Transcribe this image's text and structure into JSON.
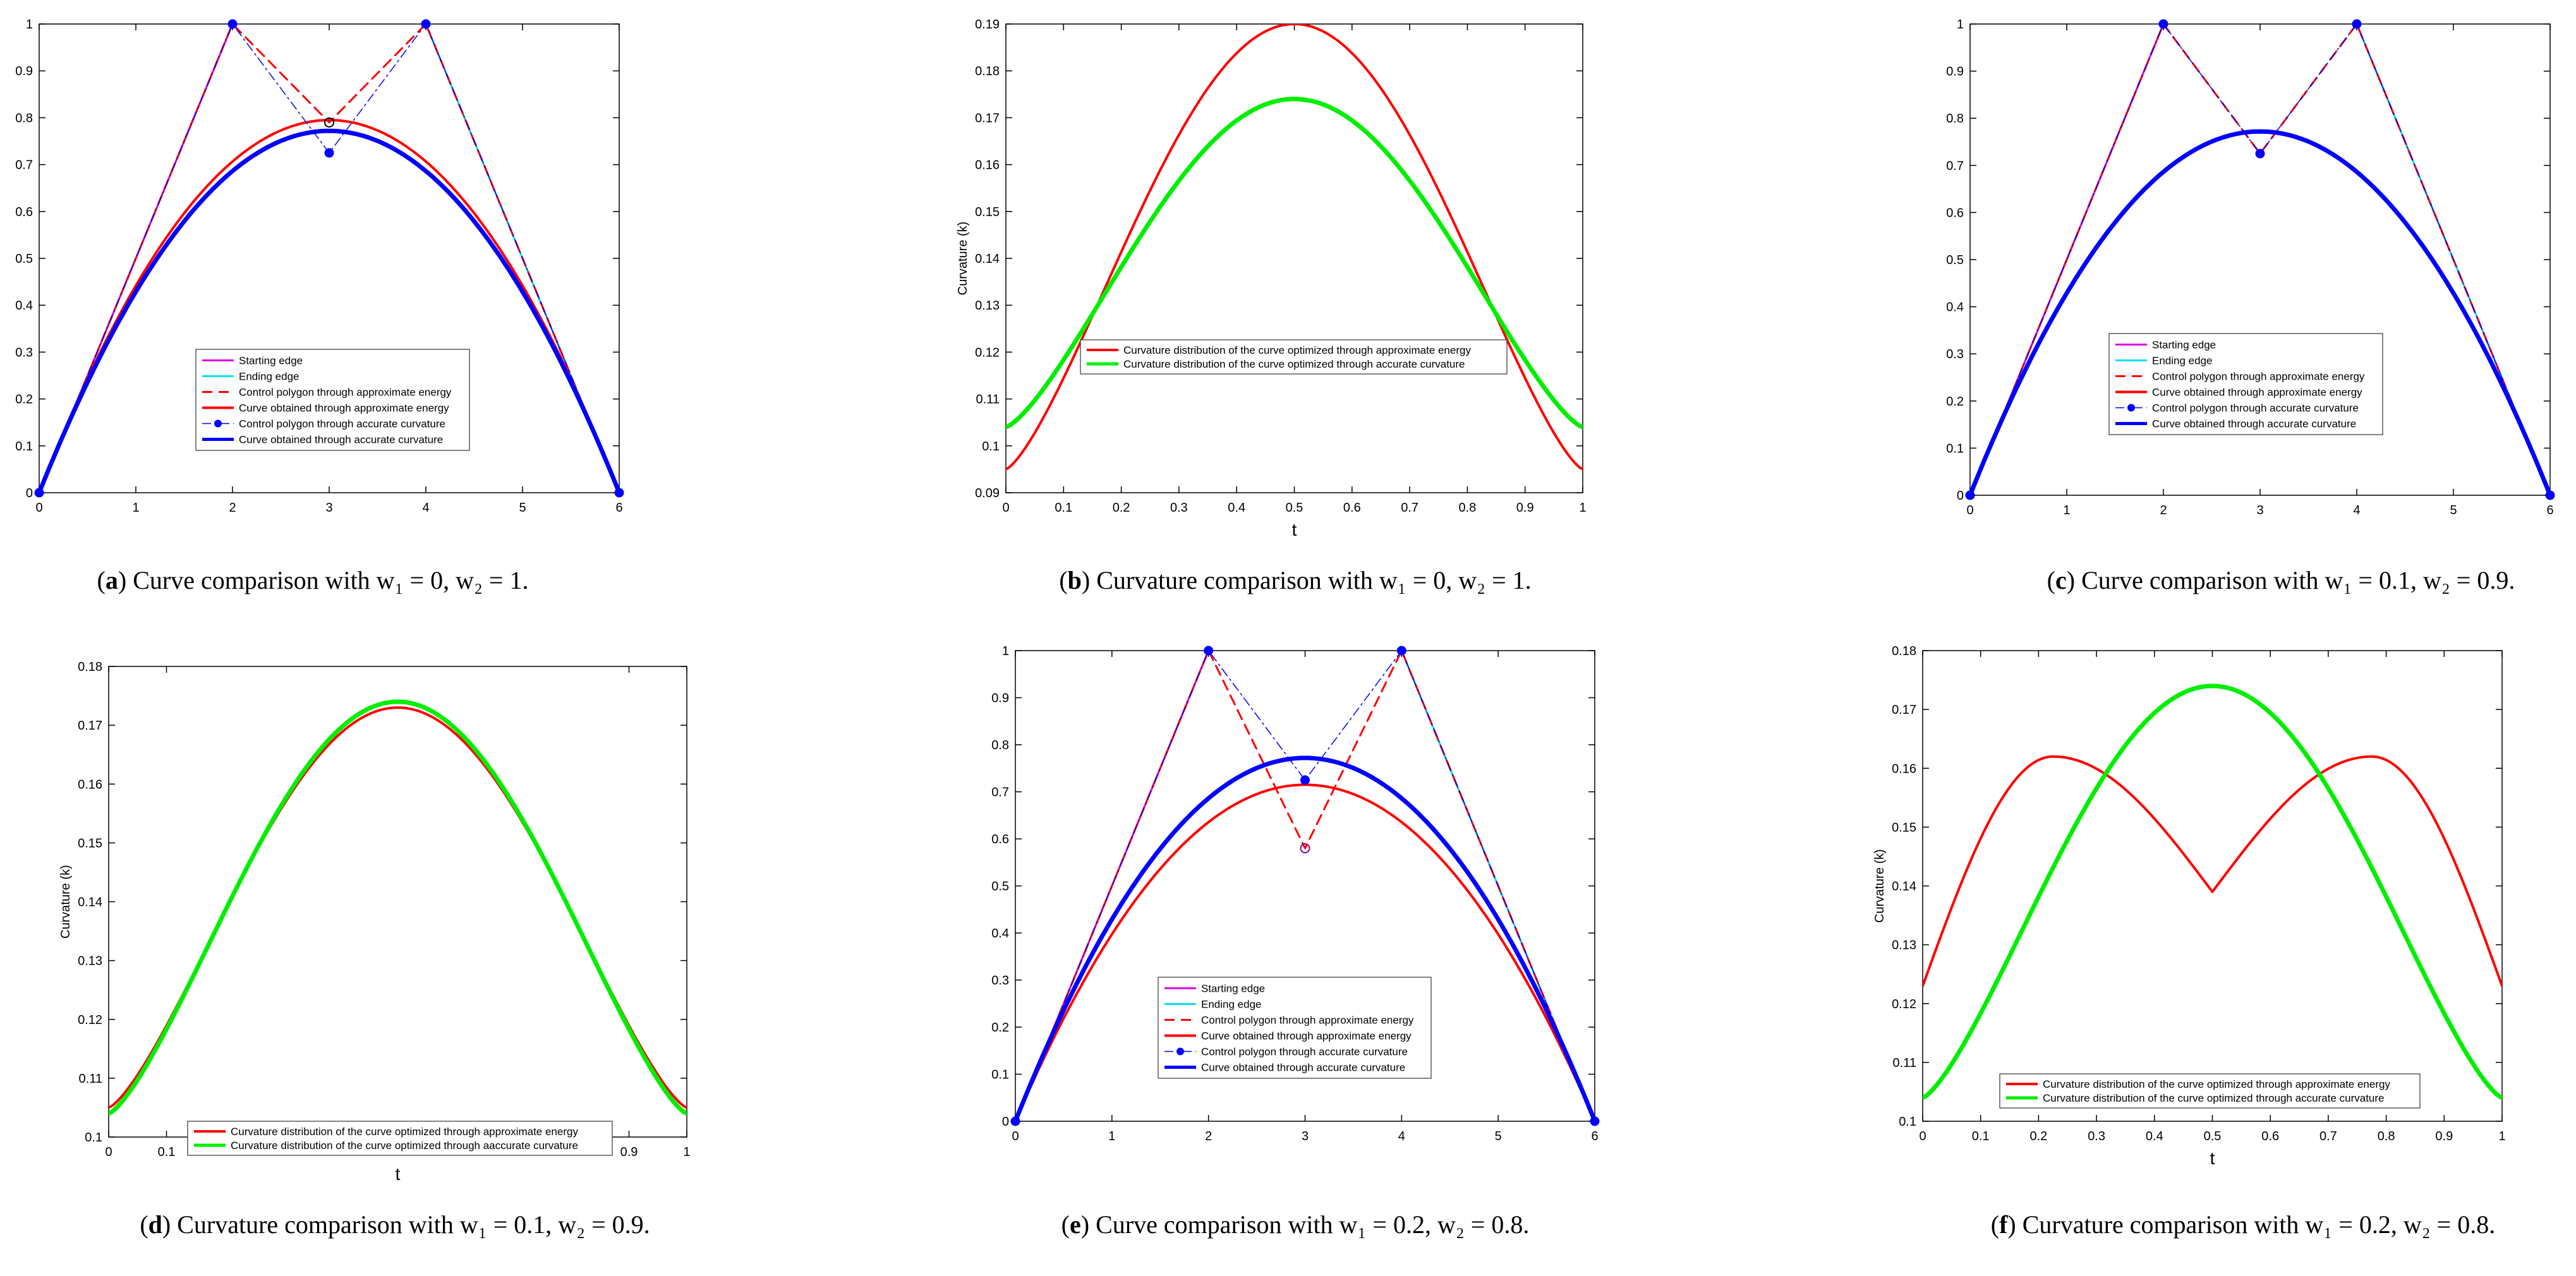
{
  "figure": {
    "panels": [
      {
        "id": "a",
        "label": "a",
        "caption_text": "Curve comparison with w₁ = 0, w₂ = 1."
      },
      {
        "id": "b",
        "label": "b",
        "caption_text": "Curvature comparison with w₁ = 0, w₂ = 1."
      },
      {
        "id": "c",
        "label": "c",
        "caption_text": "Curve comparison with w₁ = 0.1, w₂ = 0.9."
      },
      {
        "id": "d",
        "label": "d",
        "caption_text": "Curvature comparison with w₁ = 0.1, w₂ = 0.9."
      },
      {
        "id": "e",
        "label": "e",
        "caption_text": "Curve comparison with w₁ = 0.2, w₂ = 0.8."
      },
      {
        "id": "f",
        "label": "f",
        "caption_text": "Curvature comparison with w₁ = 0.2, w₂ = 0.8."
      }
    ]
  },
  "colors": {
    "starting_edge": "#e000e0",
    "ending_edge": "#00e5ee",
    "approx": "#ff0000",
    "accurate": "#0000ff",
    "accurate_curvature": "#00ee00"
  },
  "chart_data": [
    {
      "panel": "a",
      "type": "line",
      "title": "",
      "xlabel": "",
      "ylabel": "",
      "xlim": [
        0,
        6
      ],
      "ylim": [
        0,
        1
      ],
      "xticks": [
        0,
        1,
        2,
        3,
        4,
        5,
        6
      ],
      "yticks": [
        0,
        0.1,
        0.2,
        0.3,
        0.4,
        0.5,
        0.6,
        0.7,
        0.8,
        0.9,
        1
      ],
      "legend_position": "lower-center",
      "series": [
        {
          "name": "Starting edge",
          "style": "solid-magenta",
          "points": [
            [
              0,
              0
            ],
            [
              2,
              1
            ]
          ]
        },
        {
          "name": "Ending edge",
          "style": "solid-cyan",
          "points": [
            [
              4,
              1
            ],
            [
              6,
              0
            ]
          ]
        },
        {
          "name": "Control polygon through approximate energy",
          "style": "dashed-red",
          "points": [
            [
              0,
              0
            ],
            [
              2,
              1
            ],
            [
              3,
              0.79
            ],
            [
              4,
              1
            ],
            [
              6,
              0
            ]
          ]
        },
        {
          "name": "Curve obtained through approximate energy",
          "style": "solid-red",
          "curve_peak": 0.795
        },
        {
          "name": "Control polygon through accurate curvature",
          "style": "dashdot-blue-markers",
          "points": [
            [
              0,
              0
            ],
            [
              2,
              1
            ],
            [
              3,
              0.725
            ],
            [
              4,
              1
            ],
            [
              6,
              0
            ]
          ]
        },
        {
          "name": "Curve obtained through accurate curvature",
          "style": "thick-blue",
          "curve_peak": 0.772
        }
      ]
    },
    {
      "panel": "b",
      "type": "line",
      "title": "",
      "xlabel": "t",
      "ylabel": "Curvature (k)",
      "xlim": [
        0,
        1
      ],
      "ylim": [
        0.09,
        0.19
      ],
      "xticks": [
        0,
        0.1,
        0.2,
        0.3,
        0.4,
        0.5,
        0.6,
        0.7,
        0.8,
        0.9,
        1
      ],
      "yticks": [
        0.09,
        0.1,
        0.11,
        0.12,
        0.13,
        0.14,
        0.15,
        0.16,
        0.17,
        0.18,
        0.19
      ],
      "legend_position": "center",
      "series": [
        {
          "name": "Curvature distribution of the curve optimized through approximate energy",
          "style": "solid-red",
          "shape": "single",
          "end": 0.095,
          "center": 0.19
        },
        {
          "name": "Curvature distribution of the curve optimized through accurate curvature",
          "style": "thick-green",
          "shape": "single",
          "end": 0.104,
          "center": 0.174
        }
      ]
    },
    {
      "panel": "c",
      "type": "line",
      "title": "",
      "xlabel": "",
      "ylabel": "",
      "xlim": [
        0,
        6
      ],
      "ylim": [
        0,
        1
      ],
      "xticks": [
        0,
        1,
        2,
        3,
        4,
        5,
        6
      ],
      "yticks": [
        0,
        0.1,
        0.2,
        0.3,
        0.4,
        0.5,
        0.6,
        0.7,
        0.8,
        0.9,
        1
      ],
      "legend_position": "right-center",
      "series": [
        {
          "name": "Starting edge",
          "style": "solid-magenta",
          "points": [
            [
              0,
              0
            ],
            [
              2,
              1
            ]
          ]
        },
        {
          "name": "Ending edge",
          "style": "solid-cyan",
          "points": [
            [
              4,
              1
            ],
            [
              6,
              0
            ]
          ]
        },
        {
          "name": "Control polygon through approximate energy",
          "style": "dashed-red",
          "points": [
            [
              0,
              0
            ],
            [
              2,
              1
            ],
            [
              3,
              0.725
            ],
            [
              4,
              1
            ],
            [
              6,
              0
            ]
          ]
        },
        {
          "name": "Curve obtained through approximate energy",
          "style": "solid-red",
          "curve_peak": 0.773
        },
        {
          "name": "Control polygon through accurate curvature",
          "style": "dashdot-blue-markers",
          "points": [
            [
              0,
              0
            ],
            [
              2,
              1
            ],
            [
              3,
              0.725
            ],
            [
              4,
              1
            ],
            [
              6,
              0
            ]
          ]
        },
        {
          "name": "Curve obtained through accurate curvature",
          "style": "thick-blue",
          "curve_peak": 0.772
        }
      ]
    },
    {
      "panel": "d",
      "type": "line",
      "title": "",
      "xlabel": "t",
      "ylabel": "Curvature (k)",
      "xlim": [
        0,
        1
      ],
      "ylim": [
        0.1,
        0.18
      ],
      "xticks": [
        0,
        0.1,
        0.9,
        1
      ],
      "yticks": [
        0.1,
        0.11,
        0.12,
        0.13,
        0.14,
        0.15,
        0.16,
        0.17,
        0.18
      ],
      "legend_position": "bottom",
      "series": [
        {
          "name": "Curvature distribution of the curve optimized through approximate energy",
          "style": "solid-red",
          "shape": "single",
          "end": 0.105,
          "center": 0.173
        },
        {
          "name": "Curvature distribution of the curve optimized through aaccurate curvature",
          "style": "thick-green",
          "shape": "single",
          "end": 0.104,
          "center": 0.174
        }
      ]
    },
    {
      "panel": "e",
      "type": "line",
      "title": "",
      "xlabel": "",
      "ylabel": "",
      "xlim": [
        0,
        6
      ],
      "ylim": [
        0,
        1
      ],
      "xticks": [
        0,
        1,
        2,
        3,
        4,
        5,
        6
      ],
      "yticks": [
        0,
        0.1,
        0.2,
        0.3,
        0.4,
        0.5,
        0.6,
        0.7,
        0.8,
        0.9,
        1
      ],
      "legend_position": "lower-center",
      "series": [
        {
          "name": "Starting edge",
          "style": "solid-magenta",
          "points": [
            [
              0,
              0
            ],
            [
              2,
              1
            ]
          ]
        },
        {
          "name": "Ending edge",
          "style": "solid-cyan",
          "points": [
            [
              4,
              1
            ],
            [
              6,
              0
            ]
          ]
        },
        {
          "name": "Control polygon through approximate energy",
          "style": "dashed-red",
          "points": [
            [
              0,
              0
            ],
            [
              2,
              1
            ],
            [
              3,
              0.58
            ],
            [
              4,
              1
            ],
            [
              6,
              0
            ]
          ]
        },
        {
          "name": "Curve obtained through approximate energy",
          "style": "solid-red",
          "curve_peak": 0.715
        },
        {
          "name": "Control polygon through accurate curvature",
          "style": "dashdot-blue-markers",
          "points": [
            [
              0,
              0
            ],
            [
              2,
              1
            ],
            [
              3,
              0.725
            ],
            [
              4,
              1
            ],
            [
              6,
              0
            ]
          ]
        },
        {
          "name": "Curve obtained through accurate curvature",
          "style": "thick-blue",
          "curve_peak": 0.772
        }
      ]
    },
    {
      "panel": "f",
      "type": "line",
      "title": "",
      "xlabel": "t",
      "ylabel": "Curvature (k)",
      "xlim": [
        0,
        1
      ],
      "ylim": [
        0.1,
        0.18
      ],
      "xticks": [
        0,
        0.1,
        0.2,
        0.3,
        0.4,
        0.5,
        0.6,
        0.7,
        0.8,
        0.9,
        1
      ],
      "yticks": [
        0.1,
        0.11,
        0.12,
        0.13,
        0.14,
        0.15,
        0.16,
        0.17,
        0.18
      ],
      "legend_position": "lower-left",
      "series": [
        {
          "name": "Curvature distribution of the curve optimized through approximate energy",
          "style": "solid-red",
          "shape": "double",
          "end": 0.123,
          "peak": 0.162,
          "peak_t": 0.225,
          "center": 0.139
        },
        {
          "name": "Curvature distribution of the curve optimized through accurate curvature",
          "style": "thick-green",
          "shape": "single",
          "end": 0.104,
          "center": 0.174
        }
      ]
    }
  ]
}
